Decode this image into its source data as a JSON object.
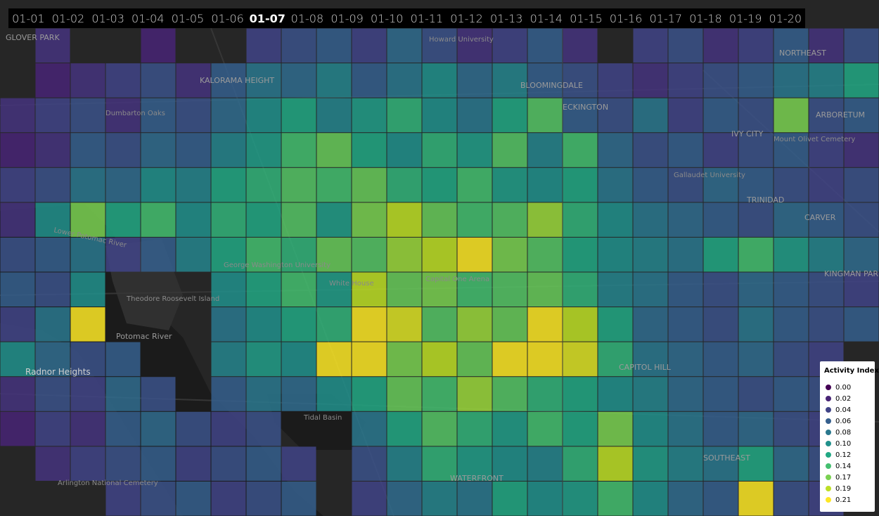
{
  "dates": [
    "01-01",
    "01-02",
    "01-03",
    "01-04",
    "01-05",
    "01-06",
    "01-07",
    "01-08",
    "01-09",
    "01-10",
    "01-11",
    "01-12",
    "01-13",
    "01-14",
    "01-15",
    "01-16",
    "01-17",
    "01-18",
    "01-19",
    "01-20"
  ],
  "active_index": 6,
  "legend": {
    "title": "Activity Index",
    "items": [
      {
        "value": {
          "value": 0,
          "label": "0.00"
        },
        "color": "#440154"
      },
      {
        "value": {
          "value": 0.02,
          "label": "0.02"
        },
        "color": "#482475"
      },
      {
        "value": {
          "value": 0.04,
          "label": "0.04"
        },
        "color": "#414487"
      },
      {
        "value": {
          "value": 0.06,
          "label": "0.06"
        },
        "color": "#355f8d"
      },
      {
        "value": {
          "value": 0.08,
          "label": "0.08"
        },
        "color": "#2a788e"
      },
      {
        "value": {
          "value": 0.1,
          "label": "0.10"
        },
        "color": "#21918c"
      },
      {
        "value": {
          "value": 0.12,
          "label": "0.12"
        },
        "color": "#22a884"
      },
      {
        "value": {
          "value": 0.14,
          "label": "0.14"
        },
        "color": "#44bf70"
      },
      {
        "value": {
          "value": 0.17,
          "label": "0.17"
        },
        "color": "#7ad151"
      },
      {
        "value": {
          "value": 0.19,
          "label": "0.19"
        },
        "color": "#bddf26"
      },
      {
        "value": {
          "value": 0.21,
          "label": "0.21"
        },
        "color": "#fde725"
      }
    ]
  },
  "heatmap": {
    "rows": [
      [
        null,
        0.03,
        null,
        null,
        0.02,
        null,
        null,
        0.04,
        0.05,
        0.06,
        0.04,
        0.07,
        0.05,
        0.03,
        0.04,
        0.06,
        0.03,
        null,
        0.04,
        0.05,
        0.03,
        0.04,
        0.06,
        0.03,
        0.05
      ],
      [
        null,
        0.02,
        0.03,
        0.04,
        0.05,
        0.03,
        0.06,
        0.08,
        0.07,
        0.09,
        0.06,
        0.08,
        0.1,
        0.07,
        0.09,
        0.06,
        0.05,
        0.04,
        0.03,
        0.04,
        0.05,
        0.06,
        0.08,
        0.09,
        0.12
      ],
      [
        0.03,
        0.04,
        0.05,
        0.03,
        0.06,
        0.05,
        0.07,
        0.1,
        0.12,
        0.09,
        0.11,
        0.13,
        0.1,
        0.08,
        0.12,
        0.15,
        0.06,
        0.05,
        0.08,
        0.04,
        0.06,
        0.05,
        0.17,
        0.05,
        0.06
      ],
      [
        0.02,
        0.03,
        0.06,
        0.05,
        0.07,
        0.06,
        0.09,
        0.11,
        0.14,
        0.16,
        0.12,
        0.1,
        0.13,
        0.11,
        0.15,
        0.09,
        0.14,
        0.07,
        0.05,
        0.06,
        0.04,
        0.05,
        0.06,
        0.04,
        0.03
      ],
      [
        0.04,
        0.05,
        0.08,
        0.07,
        0.1,
        0.09,
        0.12,
        0.13,
        0.15,
        0.14,
        0.16,
        0.13,
        0.12,
        0.14,
        0.11,
        0.1,
        0.12,
        0.08,
        0.06,
        0.05,
        0.07,
        0.06,
        0.05,
        0.04,
        0.05
      ],
      [
        0.03,
        0.1,
        0.17,
        0.12,
        0.14,
        0.1,
        0.13,
        0.12,
        0.15,
        0.11,
        0.17,
        0.19,
        0.16,
        0.14,
        0.15,
        0.18,
        0.13,
        0.1,
        0.08,
        0.07,
        0.06,
        0.05,
        0.07,
        0.06,
        0.05
      ],
      [
        0.05,
        0.06,
        0.08,
        0.04,
        0.06,
        0.09,
        0.12,
        0.14,
        0.13,
        0.16,
        0.15,
        0.18,
        0.19,
        0.21,
        0.17,
        0.15,
        0.12,
        0.1,
        0.09,
        0.08,
        0.12,
        0.14,
        0.11,
        0.09,
        0.07
      ],
      [
        0.06,
        0.05,
        0.1,
        null,
        null,
        null,
        0.1,
        0.12,
        0.14,
        0.11,
        0.19,
        0.16,
        0.17,
        0.14,
        0.15,
        0.16,
        0.13,
        0.09,
        0.08,
        0.06,
        0.05,
        0.07,
        0.06,
        0.05,
        0.04
      ],
      [
        0.04,
        0.08,
        0.21,
        null,
        null,
        null,
        0.08,
        0.1,
        0.12,
        0.13,
        0.21,
        0.2,
        0.15,
        0.18,
        0.16,
        0.21,
        0.19,
        0.12,
        0.07,
        0.06,
        0.05,
        0.08,
        0.06,
        0.05,
        0.06
      ],
      [
        0.1,
        0.07,
        0.05,
        0.06,
        null,
        null,
        0.09,
        0.11,
        0.1,
        0.21,
        0.21,
        0.17,
        0.19,
        0.16,
        0.21,
        0.21,
        0.2,
        0.13,
        0.08,
        0.07,
        0.06,
        0.07,
        0.05,
        0.04,
        null
      ],
      [
        0.03,
        0.05,
        0.04,
        0.07,
        0.05,
        null,
        0.06,
        0.08,
        0.07,
        0.1,
        0.12,
        0.16,
        0.14,
        0.18,
        0.15,
        0.13,
        0.12,
        0.1,
        0.09,
        0.07,
        0.06,
        0.05,
        0.06,
        0.05,
        null
      ],
      [
        0.02,
        0.04,
        0.03,
        0.06,
        0.07,
        0.05,
        0.04,
        0.05,
        null,
        null,
        0.08,
        0.12,
        0.15,
        0.13,
        0.11,
        0.14,
        0.12,
        0.17,
        0.1,
        0.08,
        0.06,
        0.07,
        0.05,
        0.04,
        null
      ],
      [
        null,
        0.03,
        0.04,
        0.05,
        0.06,
        0.04,
        0.05,
        0.06,
        0.04,
        null,
        0.05,
        0.09,
        0.13,
        0.11,
        0.1,
        0.09,
        0.13,
        0.19,
        0.11,
        0.09,
        0.08,
        0.12,
        0.07,
        0.05,
        null
      ],
      [
        null,
        null,
        null,
        0.04,
        0.05,
        0.06,
        0.04,
        0.05,
        0.06,
        null,
        0.04,
        0.07,
        0.09,
        0.08,
        0.12,
        0.1,
        0.11,
        0.14,
        0.1,
        0.07,
        0.06,
        0.21,
        0.05,
        0.04,
        null
      ]
    ]
  },
  "labels": [
    "GLOVER PARK",
    "KALORAMA HEIGHT",
    "Dumbarton Oaks",
    "BLOOMINGDALE",
    "ECKINGTON",
    "IVY CITY",
    "Mount Olivet Cemetery",
    "Gallaudet University",
    "TRINIDAD",
    "CARVER",
    "NORTHEAST",
    "Theodore Roosevelt Island",
    "Radnor Heights",
    "George Washington University",
    "Tidal Basin",
    "Lower Potomac River",
    "Potomac River",
    "KINGMAN PARK",
    "CAPITOL HILL",
    "Arlington National Cemetery",
    "SOUTHEAST",
    "WATERFRONT",
    "White House",
    "Capital One Arena",
    "Howard University",
    "ARBORETUM"
  ]
}
